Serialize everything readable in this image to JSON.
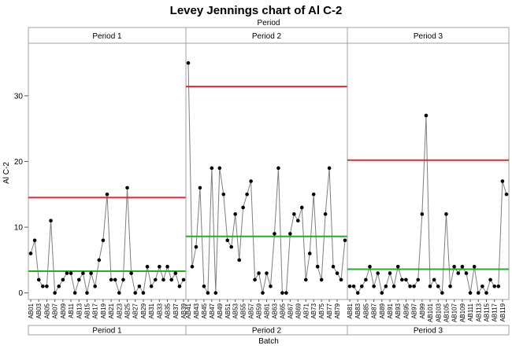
{
  "chart_data": {
    "type": "line",
    "title": "Levey Jennings chart of Al C-2",
    "xlabel": "Batch",
    "ylabel": "Al C-2",
    "group_title": "Period",
    "ylim": [
      -1,
      38
    ],
    "yticks": [
      0,
      10,
      20,
      30
    ],
    "grid": false,
    "colors": {
      "line": "#7f7f7f",
      "point": "#000000",
      "upper_limit": "#d62b3a",
      "mean": "#20b020",
      "panel_bg": "#ffffff",
      "header_bg": "#ffffff",
      "border": "#a0a0a0"
    },
    "panels": [
      {
        "name": "Period 1",
        "tick_labels": [
          "AB01",
          "AB03",
          "AB05",
          "AB07",
          "AB09",
          "AB11",
          "AB13",
          "AB15",
          "AB17",
          "AB19",
          "AB21",
          "AB23",
          "AB25",
          "AB27",
          "AB29",
          "AB31",
          "AB33",
          "AB35",
          "AB37",
          "AB39"
        ],
        "mean": 3.3,
        "upper_limit": 14.5,
        "values": [
          6,
          8,
          2,
          1,
          1,
          11,
          0,
          1,
          2,
          3,
          3,
          0,
          2,
          3,
          0,
          3,
          1,
          5,
          8,
          15,
          2,
          2,
          0,
          2,
          16,
          3,
          0,
          1,
          0,
          4,
          1,
          2,
          4,
          2,
          4,
          2,
          3,
          1,
          2
        ]
      },
      {
        "name": "Period 2",
        "tick_labels": [
          "AB41",
          "AB43",
          "AB45",
          "AB47",
          "AB49",
          "AB51",
          "AB53",
          "AB55",
          "AB57",
          "AB59",
          "AB61",
          "AB63",
          "AB65",
          "AB67",
          "AB69",
          "AB71",
          "AB73",
          "AB75",
          "AB77",
          "AB79"
        ],
        "mean": 8.6,
        "upper_limit": 31.4,
        "values": [
          35,
          4,
          7,
          16,
          1,
          0,
          19,
          0,
          19,
          15,
          8,
          7,
          12,
          5,
          13,
          15,
          17,
          2,
          3,
          0,
          3,
          1,
          9,
          19,
          0,
          0,
          9,
          12,
          11,
          13,
          2,
          6,
          15,
          4,
          2,
          12,
          19,
          4,
          3,
          2,
          8
        ]
      },
      {
        "name": "Period 3",
        "tick_labels": [
          "AB81",
          "AB83",
          "AB85",
          "AB87",
          "AB89",
          "AB91",
          "AB93",
          "AB95",
          "AB97",
          "AB99",
          "AB101",
          "AB103",
          "AB105",
          "AB107",
          "AB109",
          "AB111",
          "AB113",
          "AB115",
          "AB117",
          "AB119"
        ],
        "mean": 3.6,
        "upper_limit": 20.2,
        "values": [
          1,
          1,
          0,
          1,
          2,
          4,
          1,
          3,
          0,
          1,
          3,
          1,
          4,
          2,
          2,
          1,
          1,
          2,
          12,
          27,
          1,
          2,
          1,
          0,
          12,
          1,
          4,
          3,
          4,
          3,
          0,
          4,
          0,
          1,
          0,
          2,
          1,
          1,
          17,
          15
        ]
      }
    ]
  }
}
